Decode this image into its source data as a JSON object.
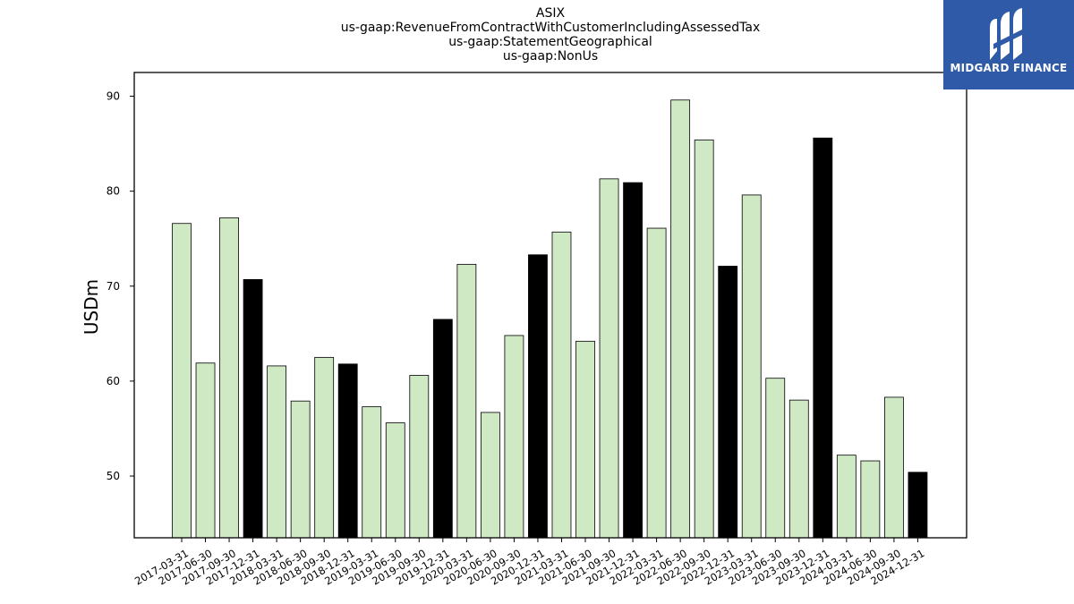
{
  "chart_data": {
    "type": "bar",
    "title_lines": [
      "ASIX",
      "us-gaap:RevenueFromContractWithCustomerIncludingAssessedTax",
      "us-gaap:StatementGeographical",
      "us-gaap:NonUs"
    ],
    "ylabel": "USDm",
    "xlabel": "",
    "ylim": [
      43.5,
      92.5
    ],
    "yticks": [
      50,
      60,
      70,
      80,
      90
    ],
    "grid": false,
    "categories": [
      "2017-03-31",
      "2017-06-30",
      "2017-09-30",
      "2017-12-31",
      "2018-03-31",
      "2018-06-30",
      "2018-09-30",
      "2018-12-31",
      "2019-03-31",
      "2019-06-30",
      "2019-09-30",
      "2019-12-31",
      "2020-03-31",
      "2020-06-30",
      "2020-09-30",
      "2020-12-31",
      "2021-03-31",
      "2021-06-30",
      "2021-09-30",
      "2021-12-31",
      "2022-03-31",
      "2022-06-30",
      "2022-09-30",
      "2022-12-31",
      "2023-03-31",
      "2023-06-30",
      "2023-09-30",
      "2023-12-31",
      "2024-03-31",
      "2024-06-30",
      "2024-09-30",
      "2024-12-31"
    ],
    "values": [
      76.6,
      61.9,
      77.2,
      70.7,
      61.6,
      57.9,
      62.5,
      61.8,
      57.3,
      55.6,
      60.6,
      66.5,
      72.3,
      56.7,
      64.8,
      73.3,
      75.7,
      64.2,
      81.3,
      80.9,
      76.1,
      89.6,
      85.4,
      72.1,
      79.6,
      60.3,
      58.0,
      85.6,
      52.2,
      51.6,
      58.3,
      50.4
    ],
    "colors": {
      "quarter": "#cfe9c5",
      "year_end": "#000000",
      "edge": "#000000"
    }
  },
  "logo": {
    "text": "MIDGARD FINANCE",
    "background": "#2e5aa8",
    "icon": "midgard-logo-icon"
  }
}
